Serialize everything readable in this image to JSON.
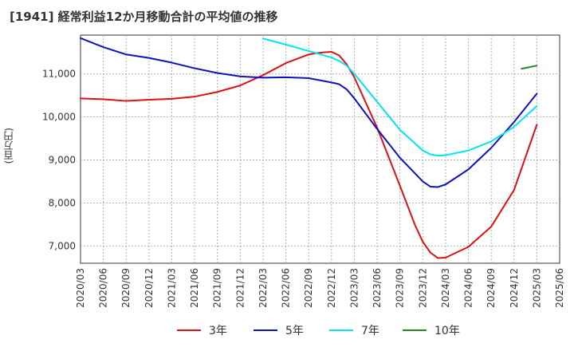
{
  "title": "[1941]  経常利益12か月移動合計の平均値の推移",
  "ylabel": "(百万円)",
  "chart_data": {
    "type": "line",
    "title": "[1941]  経常利益12か月移動合計の平均値の推移",
    "ylabel": "(百万円)",
    "xlabel": "",
    "ylim": [
      6600,
      11900
    ],
    "yticks": [
      7000,
      8000,
      9000,
      10000,
      11000
    ],
    "ytick_labels": [
      "7,000",
      "8,000",
      "9,000",
      "10,000",
      "11,000"
    ],
    "xticks": [
      "2020/03",
      "2020/06",
      "2020/09",
      "2020/12",
      "2021/03",
      "2021/06",
      "2021/09",
      "2021/12",
      "2022/03",
      "2022/06",
      "2022/09",
      "2022/12",
      "2023/03",
      "2023/06",
      "2023/09",
      "2023/12",
      "2024/03",
      "2024/06",
      "2024/09",
      "2024/12",
      "2025/03",
      "2025/06"
    ],
    "grid": true,
    "legend_position": "bottom",
    "series": [
      {
        "name": "3年",
        "color": "#dd1111",
        "points": [
          [
            "2020/03",
            10430
          ],
          [
            "2020/06",
            10410
          ],
          [
            "2020/09",
            10370
          ],
          [
            "2020/12",
            10400
          ],
          [
            "2021/03",
            10420
          ],
          [
            "2021/06",
            10470
          ],
          [
            "2021/09",
            10580
          ],
          [
            "2021/12",
            10730
          ],
          [
            "2022/03",
            10970
          ],
          [
            "2022/06",
            11250
          ],
          [
            "2022/09",
            11450
          ],
          [
            "2022/10",
            11480
          ],
          [
            "2022/11",
            11500
          ],
          [
            "2022/12",
            11510
          ],
          [
            "2023/01",
            11430
          ],
          [
            "2023/02",
            11220
          ],
          [
            "2023/03",
            10920
          ],
          [
            "2023/06",
            9750
          ],
          [
            "2023/09",
            8400
          ],
          [
            "2023/11",
            7480
          ],
          [
            "2023/12",
            7100
          ],
          [
            "2024/01",
            6850
          ],
          [
            "2024/02",
            6720
          ],
          [
            "2024/03",
            6730
          ],
          [
            "2024/06",
            6980
          ],
          [
            "2024/09",
            7450
          ],
          [
            "2024/12",
            8300
          ],
          [
            "2025/03",
            9820
          ]
        ]
      },
      {
        "name": "5年",
        "color": "#1111bb",
        "points": [
          [
            "2020/03",
            11830
          ],
          [
            "2020/06",
            11620
          ],
          [
            "2020/09",
            11450
          ],
          [
            "2020/12",
            11370
          ],
          [
            "2021/03",
            11260
          ],
          [
            "2021/06",
            11130
          ],
          [
            "2021/09",
            11020
          ],
          [
            "2021/12",
            10940
          ],
          [
            "2022/03",
            10910
          ],
          [
            "2022/06",
            10920
          ],
          [
            "2022/09",
            10900
          ],
          [
            "2022/12",
            10800
          ],
          [
            "2023/01",
            10760
          ],
          [
            "2023/02",
            10640
          ],
          [
            "2023/03",
            10430
          ],
          [
            "2023/06",
            9720
          ],
          [
            "2023/09",
            9050
          ],
          [
            "2023/12",
            8500
          ],
          [
            "2024/01",
            8380
          ],
          [
            "2024/02",
            8370
          ],
          [
            "2024/03",
            8430
          ],
          [
            "2024/06",
            8780
          ],
          [
            "2024/09",
            9280
          ],
          [
            "2024/12",
            9880
          ],
          [
            "2025/03",
            10540
          ]
        ]
      },
      {
        "name": "7年",
        "color": "#00e5ee",
        "points": [
          [
            "2022/03",
            11820
          ],
          [
            "2022/06",
            11680
          ],
          [
            "2022/09",
            11530
          ],
          [
            "2022/12",
            11380
          ],
          [
            "2023/01",
            11300
          ],
          [
            "2023/02",
            11190
          ],
          [
            "2023/03",
            11000
          ],
          [
            "2023/06",
            10350
          ],
          [
            "2023/09",
            9700
          ],
          [
            "2023/12",
            9220
          ],
          [
            "2024/01",
            9130
          ],
          [
            "2024/02",
            9100
          ],
          [
            "2024/03",
            9110
          ],
          [
            "2024/06",
            9220
          ],
          [
            "2024/09",
            9430
          ],
          [
            "2024/12",
            9770
          ],
          [
            "2025/03",
            10250
          ]
        ]
      },
      {
        "name": "10年",
        "color": "#228822",
        "points": [
          [
            "2025/01",
            11120
          ],
          [
            "2025/03",
            11190
          ]
        ]
      }
    ]
  }
}
